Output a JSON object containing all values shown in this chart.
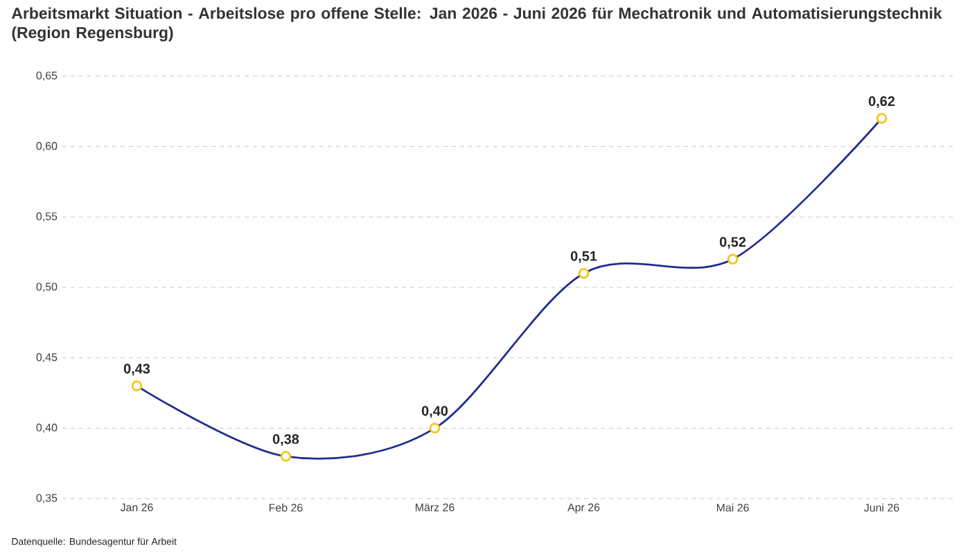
{
  "chart_data": {
    "type": "line",
    "title": "Arbeitsmarkt Situation - Arbeitslose pro offene Stelle: Jan 2026 - Juni 2026 für Mechatronik und Automatisierungstechnik (Region Regensburg)",
    "categories": [
      "Jan 26",
      "Feb 26",
      "März 26",
      "Apr 26",
      "Mai 26",
      "Juni 26"
    ],
    "series": [
      {
        "color": "#1f2d8c",
        "values": [
          0.43,
          0.38,
          0.4,
          0.51,
          0.52,
          0.62
        ],
        "value_labels": [
          "0,43",
          "0,38",
          "0,40",
          "0,51",
          "0,52",
          "0,62"
        ]
      }
    ],
    "ylim": [
      0.35,
      0.65
    ],
    "yticks": [
      {
        "value": 0.35,
        "label": "0,35"
      },
      {
        "value": 0.4,
        "label": "0,40"
      },
      {
        "value": 0.45,
        "label": "0,45"
      },
      {
        "value": 0.5,
        "label": "0,50"
      },
      {
        "value": 0.55,
        "label": "0,55"
      },
      {
        "value": 0.6,
        "label": "0,60"
      },
      {
        "value": 0.65,
        "label": "0,65"
      }
    ],
    "grid": "y",
    "legend": false,
    "marker": "circle",
    "line_style": "solid",
    "annotations": [
      "Datenquelle: Bundesagentur für Arbeit"
    ]
  }
}
